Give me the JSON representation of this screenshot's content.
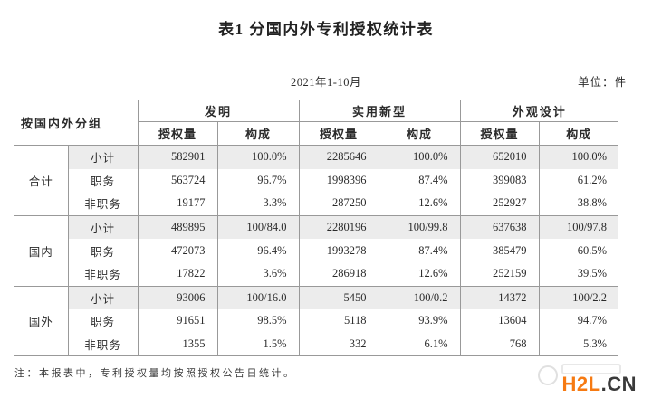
{
  "page": {
    "title": "表1  分国内外专利授权统计表",
    "period": "2021年1-10月",
    "unit_label": "单位：件",
    "note": "注：本报表中，专利授权量均按照授权公告日统计。"
  },
  "table": {
    "group_header": "按国内外分组",
    "col_groups": [
      {
        "label": "发明"
      },
      {
        "label": "实用新型"
      },
      {
        "label": "外观设计"
      }
    ],
    "sub_headers": [
      "授权量",
      "构成"
    ],
    "groups": [
      {
        "label": "合计",
        "rows": [
          {
            "label": "小计",
            "shaded": true,
            "values": [
              "582901",
              "100.0%",
              "2285646",
              "100.0%",
              "652010",
              "100.0%"
            ]
          },
          {
            "label": "职务",
            "shaded": false,
            "values": [
              "563724",
              "96.7%",
              "1998396",
              "87.4%",
              "399083",
              "61.2%"
            ]
          },
          {
            "label": "非职务",
            "shaded": false,
            "values": [
              "19177",
              "3.3%",
              "287250",
              "12.6%",
              "252927",
              "38.8%"
            ]
          }
        ]
      },
      {
        "label": "国内",
        "rows": [
          {
            "label": "小计",
            "shaded": true,
            "values": [
              "489895",
              "100/84.0",
              "2280196",
              "100/99.8",
              "637638",
              "100/97.8"
            ]
          },
          {
            "label": "职务",
            "shaded": false,
            "values": [
              "472073",
              "96.4%",
              "1993278",
              "87.4%",
              "385479",
              "60.5%"
            ]
          },
          {
            "label": "非职务",
            "shaded": false,
            "values": [
              "17822",
              "3.6%",
              "286918",
              "12.6%",
              "252159",
              "39.5%"
            ]
          }
        ]
      },
      {
        "label": "国外",
        "rows": [
          {
            "label": "小计",
            "shaded": true,
            "values": [
              "93006",
              "100/16.0",
              "5450",
              "100/0.2",
              "14372",
              "100/2.2"
            ]
          },
          {
            "label": "职务",
            "shaded": false,
            "values": [
              "91651",
              "98.5%",
              "5118",
              "93.9%",
              "13604",
              "94.7%"
            ]
          },
          {
            "label": "非职务",
            "shaded": false,
            "values": [
              "1355",
              "1.5%",
              "332",
              "6.1%",
              "768",
              "5.3%"
            ]
          }
        ]
      }
    ]
  },
  "watermark": {
    "primary": "H2L",
    "secondary": ".CN",
    "primary_color": "#f67a12",
    "secondary_color": "#3a3a3a"
  }
}
